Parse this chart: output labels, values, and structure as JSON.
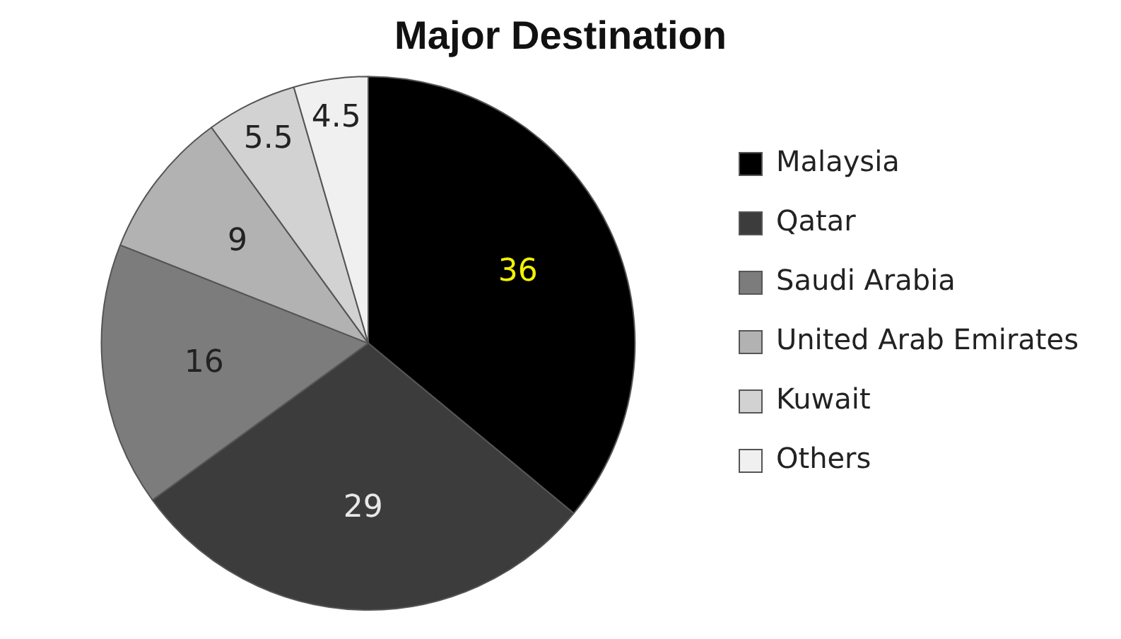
{
  "chart_data": {
    "type": "pie",
    "title": "Major Destination",
    "categories": [
      "Malaysia",
      "Qatar",
      "Saudi Arabia",
      "United Arab Emirates",
      "Kuwait",
      "Others"
    ],
    "values": [
      36,
      29,
      16,
      9,
      5.5,
      4.5
    ],
    "colors": [
      "#000000",
      "#3c3c3c",
      "#7c7c7c",
      "#b2b2b2",
      "#d2d2d2",
      "#f0f0f0"
    ],
    "data_labels": true,
    "legend": "right"
  }
}
